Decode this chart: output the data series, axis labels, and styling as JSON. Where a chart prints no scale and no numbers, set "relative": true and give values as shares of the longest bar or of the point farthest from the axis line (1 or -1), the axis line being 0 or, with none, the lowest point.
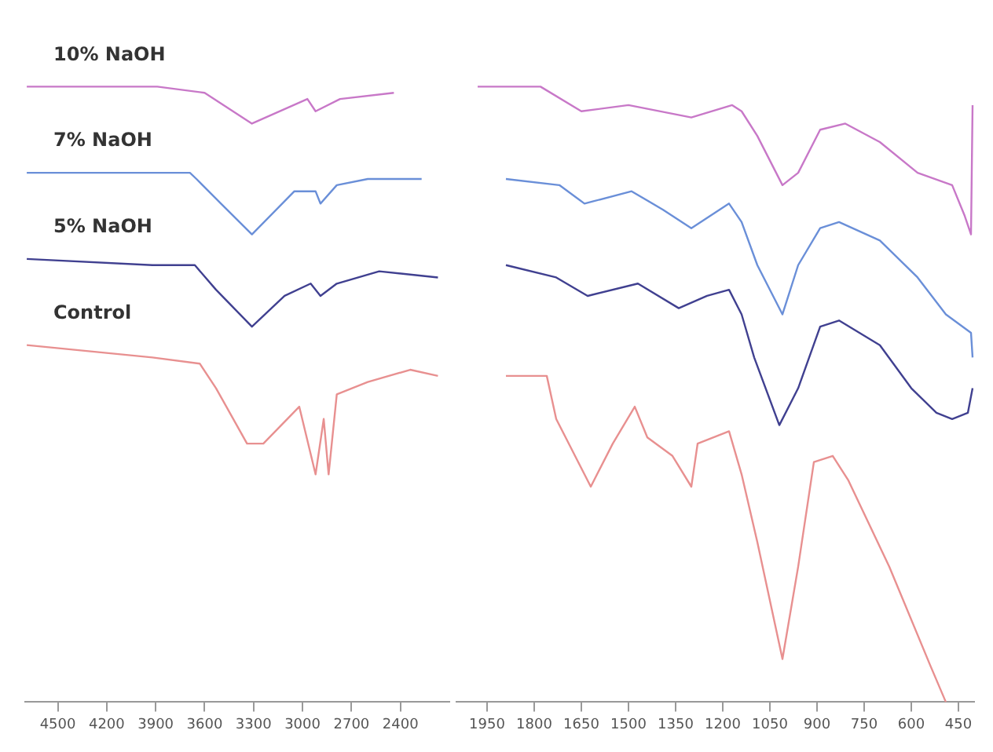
{
  "chart_data": [
    {
      "type": "line",
      "relative": true,
      "tick_labels": "x",
      "grid": false,
      "legend": false,
      "marker": "none",
      "line_style": "solid",
      "xlim": [
        4700,
        2100
      ],
      "xticks": [
        4500,
        4200,
        3900,
        3600,
        3300,
        3000,
        2700,
        2400
      ],
      "series": [
        {
          "name": "10% NaOH",
          "color": "#c878c8",
          "x": [
            4690,
            3890,
            3600,
            3310,
            2970,
            2920,
            2770,
            2440
          ],
          "values": [
            1.0,
            1.0,
            0.99,
            0.94,
            0.98,
            0.96,
            0.98,
            0.99
          ]
        },
        {
          "name": "7% NaOH",
          "color": "#6a8fd8",
          "x": [
            4690,
            3890,
            3690,
            3650,
            3500,
            3310,
            3050,
            2920,
            2890,
            2790,
            2600,
            2270
          ],
          "values": [
            0.86,
            0.86,
            0.86,
            0.85,
            0.81,
            0.76,
            0.83,
            0.83,
            0.81,
            0.84,
            0.85,
            0.85
          ]
        },
        {
          "name": "5% NaOH",
          "color": "#404090",
          "x": [
            4690,
            3920,
            3660,
            3530,
            3310,
            3110,
            2950,
            2890,
            2790,
            2530,
            2170
          ],
          "values": [
            0.72,
            0.71,
            0.71,
            0.67,
            0.61,
            0.66,
            0.68,
            0.66,
            0.68,
            0.7,
            0.69
          ]
        },
        {
          "name": "Control",
          "color": "#e89090",
          "x": [
            4690,
            3920,
            3630,
            3530,
            3340,
            3240,
            3020,
            2920,
            2870,
            2840,
            2790,
            2600,
            2340,
            2170
          ],
          "values": [
            0.58,
            0.56,
            0.55,
            0.51,
            0.42,
            0.42,
            0.48,
            0.37,
            0.46,
            0.37,
            0.5,
            0.52,
            0.54,
            0.53
          ]
        }
      ]
    },
    {
      "type": "line",
      "relative": true,
      "tick_labels": "x",
      "grid": false,
      "legend": false,
      "marker": "none",
      "line_style": "solid",
      "xlim": [
        2050,
        400
      ],
      "xticks": [
        1950,
        1800,
        1650,
        1500,
        1350,
        1200,
        1050,
        900,
        750,
        600,
        450
      ],
      "series": [
        {
          "color": "#c878c8",
          "x": [
            1980,
            1890,
            1780,
            1650,
            1500,
            1300,
            1170,
            1140,
            1090,
            1010,
            960,
            890,
            810,
            700,
            580,
            470,
            430,
            410,
            405
          ],
          "values": [
            1.0,
            1.0,
            1.0,
            0.96,
            0.97,
            0.95,
            0.97,
            0.96,
            0.92,
            0.84,
            0.86,
            0.93,
            0.94,
            0.91,
            0.86,
            0.84,
            0.79,
            0.76,
            0.97
          ]
        },
        {
          "color": "#6a8fd8",
          "x": [
            1890,
            1720,
            1640,
            1490,
            1390,
            1300,
            1180,
            1140,
            1090,
            1010,
            960,
            890,
            830,
            700,
            580,
            490,
            410,
            405
          ],
          "values": [
            0.85,
            0.84,
            0.81,
            0.83,
            0.8,
            0.77,
            0.81,
            0.78,
            0.71,
            0.63,
            0.71,
            0.77,
            0.78,
            0.75,
            0.69,
            0.63,
            0.6,
            0.56
          ]
        },
        {
          "color": "#404090",
          "x": [
            1890,
            1730,
            1630,
            1470,
            1340,
            1250,
            1180,
            1140,
            1100,
            1020,
            960,
            890,
            830,
            700,
            600,
            520,
            470,
            420,
            405
          ],
          "values": [
            0.71,
            0.69,
            0.66,
            0.68,
            0.64,
            0.66,
            0.67,
            0.63,
            0.56,
            0.45,
            0.51,
            0.61,
            0.62,
            0.58,
            0.51,
            0.47,
            0.46,
            0.47,
            0.51
          ]
        },
        {
          "color": "#e89090",
          "x": [
            1890,
            1760,
            1730,
            1620,
            1550,
            1480,
            1440,
            1360,
            1300,
            1280,
            1180,
            1140,
            1090,
            1010,
            960,
            910,
            850,
            800,
            670,
            540,
            490
          ],
          "values": [
            0.53,
            0.53,
            0.46,
            0.35,
            0.42,
            0.48,
            0.43,
            0.4,
            0.35,
            0.42,
            0.44,
            0.37,
            0.26,
            0.07,
            0.22,
            0.39,
            0.4,
            0.36,
            0.22,
            0.06,
            0
          ]
        }
      ]
    }
  ]
}
